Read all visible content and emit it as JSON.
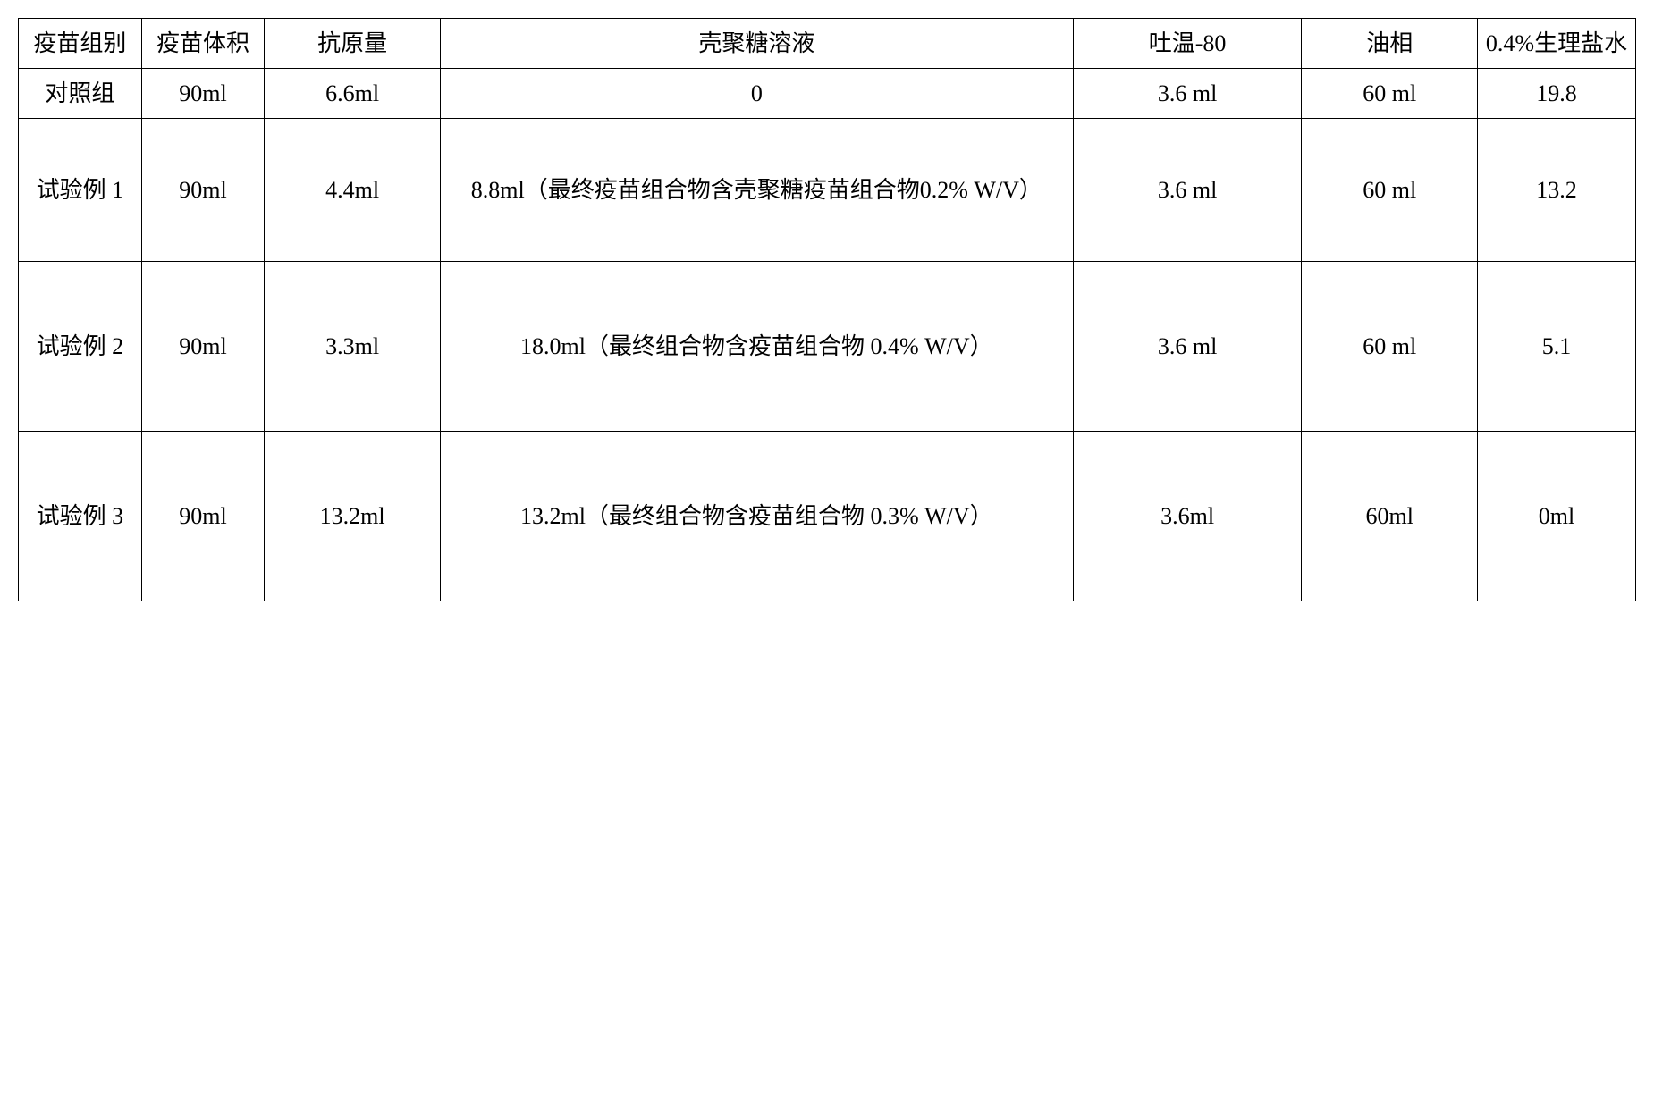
{
  "table": {
    "columns": [
      "疫苗组别",
      "疫苗体积",
      "抗原量",
      "壳聚糖溶液",
      "吐温-80",
      "油相",
      "0.4%生理盐水"
    ],
    "rows": [
      {
        "group": "对照组",
        "volume": "90ml",
        "antigen": "6.6ml",
        "chitosan": "0",
        "tween": "3.6 ml",
        "oil": "60 ml",
        "saline": "19.8"
      },
      {
        "group": "试验例 1",
        "volume": "90ml",
        "antigen": "4.4ml",
        "chitosan": "8.8ml（最终疫苗组合物含壳聚糖疫苗组合物0.2% W/V）",
        "tween": "3.6 ml",
        "oil": "60 ml",
        "saline": "13.2"
      },
      {
        "group": "试验例 2",
        "volume": "90ml",
        "antigen": "3.3ml",
        "chitosan": "18.0ml（最终组合物含疫苗组合物 0.4% W/V）",
        "tween": "3.6 ml",
        "oil": "60 ml",
        "saline": "5.1"
      },
      {
        "group": "试验例 3",
        "volume": "90ml",
        "antigen": "13.2ml",
        "chitosan": "13.2ml（最终组合物含疫苗组合物 0.3% W/V）",
        "tween": "3.6ml",
        "oil": "60ml",
        "saline": "0ml"
      }
    ],
    "style": {
      "border_color": "#000000",
      "background_color": "#ffffff",
      "font_family": "SimSun",
      "header_fontsize": 26,
      "cell_fontsize": 26,
      "text_align": "center"
    }
  }
}
